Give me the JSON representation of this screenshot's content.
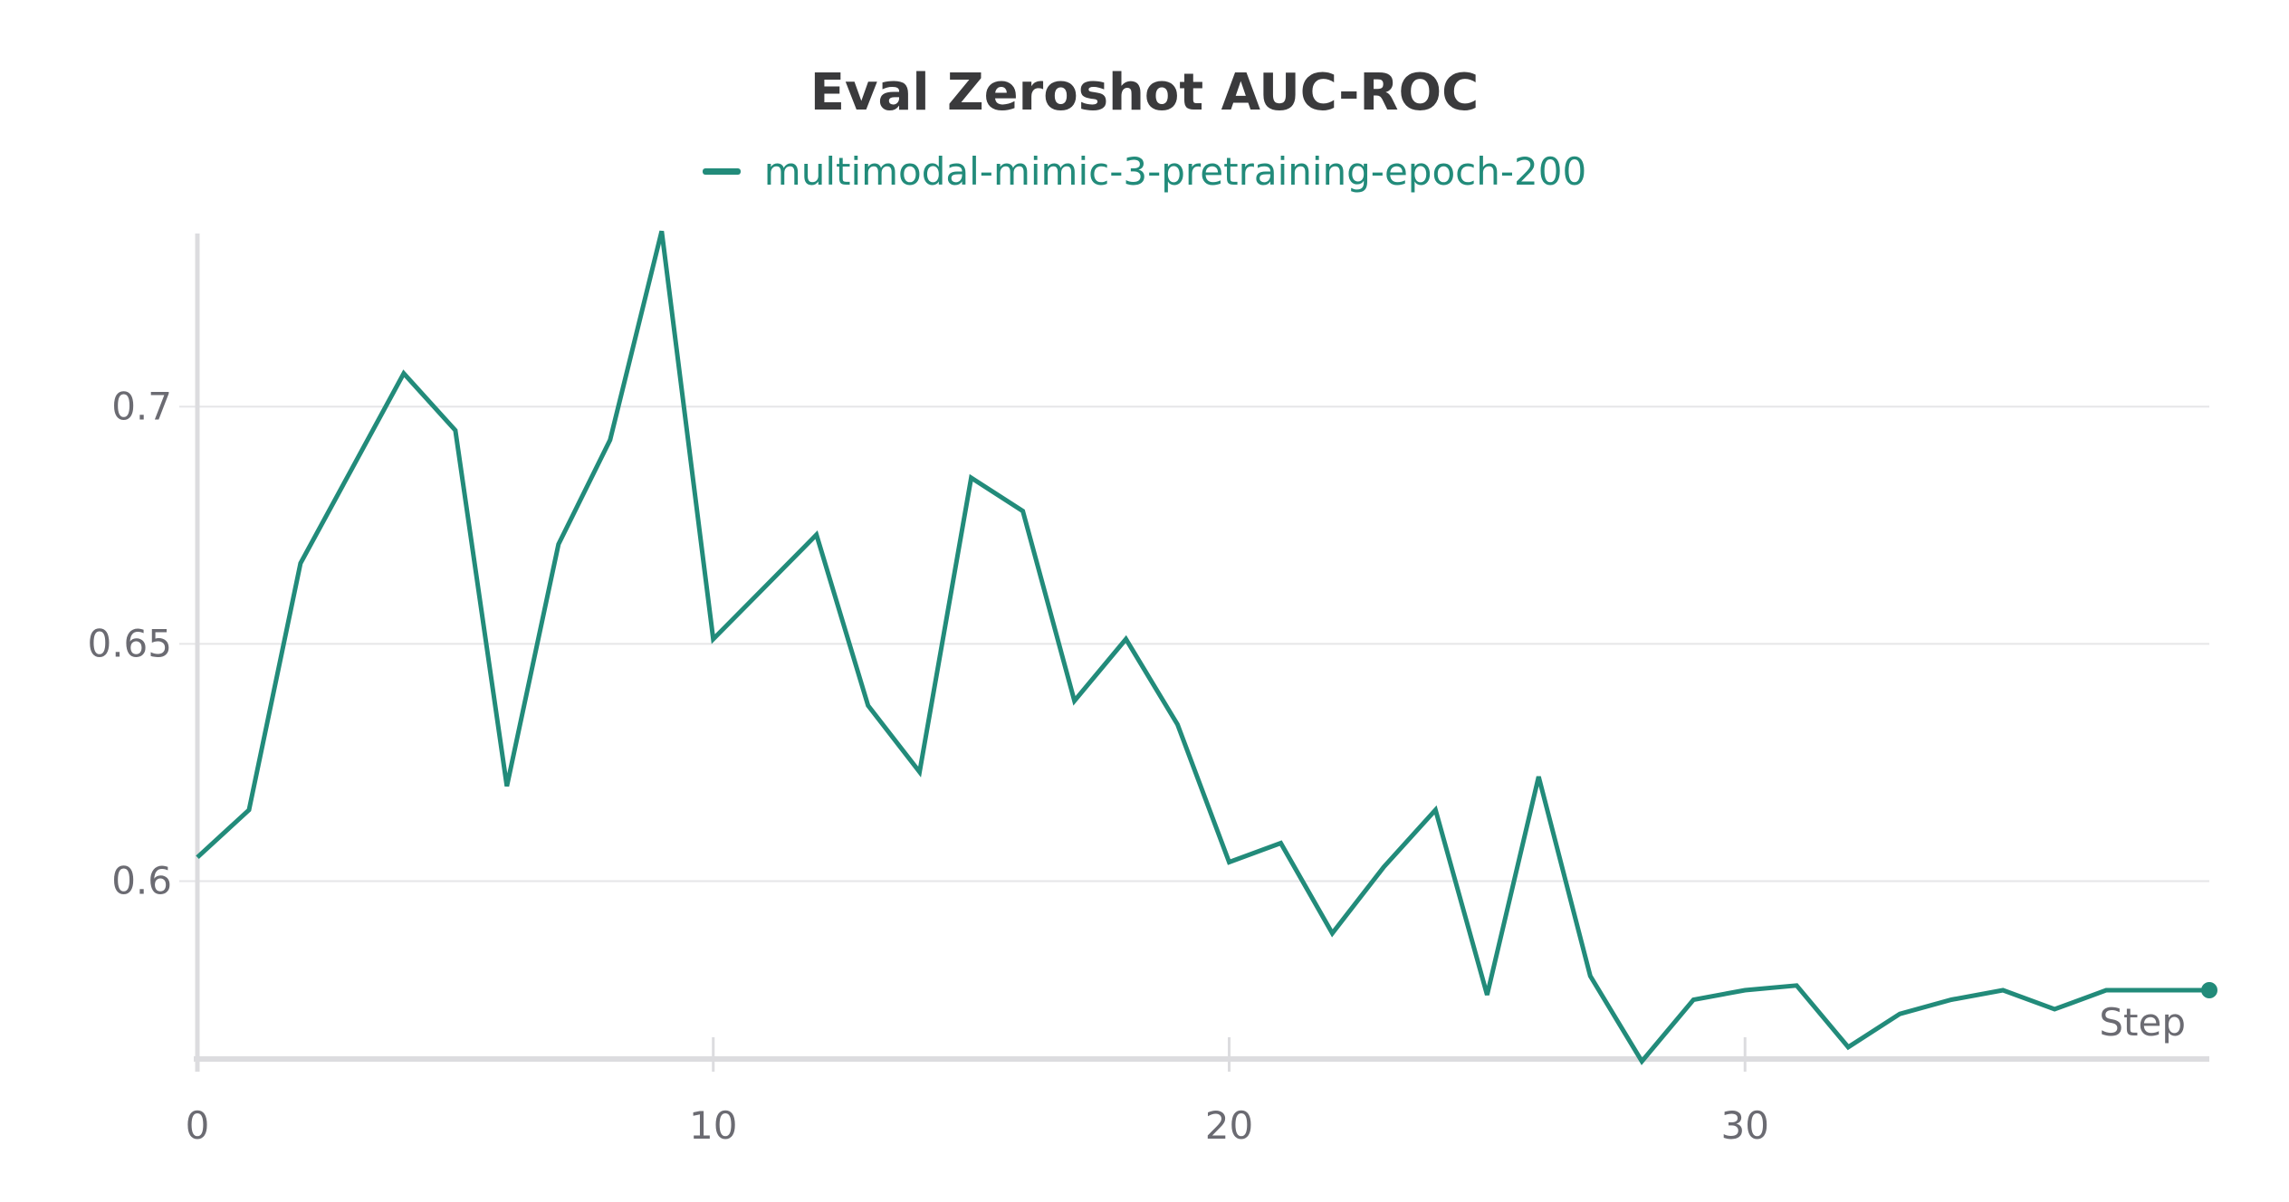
{
  "chart_data": {
    "type": "line",
    "title": "Eval Zeroshot AUC-ROC",
    "xlabel": "Step",
    "ylabel": "",
    "xlim": [
      0,
      39
    ],
    "ylim": [
      0.5625,
      0.7365
    ],
    "xticks": [
      0,
      10,
      20,
      30
    ],
    "xtick_labels": [
      "0",
      "10",
      "20",
      "30"
    ],
    "yticks": [
      0.6,
      0.65,
      0.7
    ],
    "ytick_labels": [
      "0.6",
      "0.65",
      "0.7"
    ],
    "grid": true,
    "legend_position": "top-center",
    "series": [
      {
        "name": "multimodal-mimic-3-pretraining-epoch-200",
        "color": "#228b7a",
        "x": [
          0,
          1,
          2,
          3,
          4,
          5,
          6,
          7,
          8,
          9,
          10,
          11,
          12,
          13,
          14,
          15,
          16,
          17,
          18,
          19,
          20,
          21,
          22,
          23,
          24,
          25,
          26,
          27,
          28,
          29,
          30,
          31,
          32,
          33,
          34,
          35,
          36,
          37,
          38,
          39
        ],
        "values": [
          0.605,
          0.615,
          0.667,
          0.687,
          0.707,
          0.695,
          0.62,
          0.671,
          0.693,
          0.737,
          0.651,
          0.662,
          0.673,
          0.637,
          0.623,
          0.685,
          0.678,
          0.638,
          0.651,
          0.633,
          0.604,
          0.608,
          0.589,
          0.603,
          0.615,
          0.576,
          0.622,
          0.58,
          0.562,
          0.575,
          0.577,
          0.578,
          0.565,
          0.572,
          0.575,
          0.577,
          0.573,
          0.577,
          0.577,
          0.577
        ]
      }
    ]
  }
}
